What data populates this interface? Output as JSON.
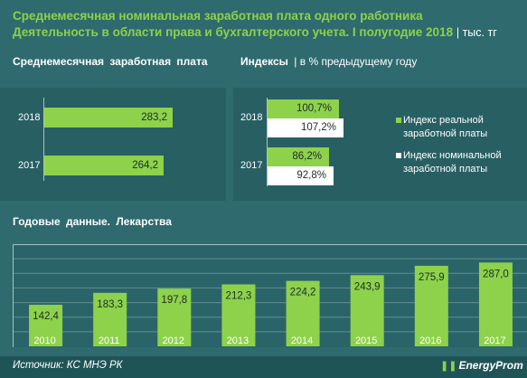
{
  "header": {
    "title_line1": "Среднемесячная номинальная заработная плата одного работника",
    "title_line2": "Деятельность в области права и бухгалтерского учета. I полугодие 2018",
    "unit": "| тыс. тг"
  },
  "colors": {
    "background": "#2e6a6e",
    "accent_green": "#8dd24a",
    "white": "#ffffff"
  },
  "chart_data": [
    {
      "type": "bar",
      "orientation": "horizontal",
      "title": "Среднемесячная  заработная  плата",
      "categories": [
        "2018",
        "2017"
      ],
      "values": [
        283.2,
        264.2
      ],
      "value_labels": [
        "283,2",
        "264,2"
      ]
    },
    {
      "type": "bar",
      "orientation": "horizontal",
      "title": "Индексы",
      "subtitle": "| в % предыдущему году",
      "categories": [
        "2018",
        "2017"
      ],
      "series": [
        {
          "name": "Индекс реальной заработной платы",
          "color": "#8dd24a",
          "values": [
            100.7,
            86.2
          ],
          "labels": [
            "100,7%",
            "86,2%"
          ]
        },
        {
          "name": "Индекс номинальной заработной платы",
          "color": "#ffffff",
          "values": [
            107.2,
            92.8
          ],
          "labels": [
            "107,2%",
            "92,8%"
          ]
        }
      ],
      "legend": "right"
    },
    {
      "type": "bar",
      "title": "Годовые данные.  Лекарства",
      "categories": [
        "2010",
        "2011",
        "2012",
        "2013",
        "2014",
        "2015",
        "2016",
        "2017"
      ],
      "values": [
        142.4,
        183.3,
        197.8,
        212.3,
        224.2,
        243.9,
        275.9,
        287.0
      ],
      "value_labels": [
        "142,4",
        "183,3",
        "197,8",
        "212,3",
        "224,2",
        "243,9",
        "275,9",
        "287,0"
      ],
      "grid": true
    }
  ],
  "footer": {
    "source": "Источник: КС МНЭ РК",
    "logo_text": "EnergyProm",
    "logo_icon": "energyprom-logo-icon"
  }
}
